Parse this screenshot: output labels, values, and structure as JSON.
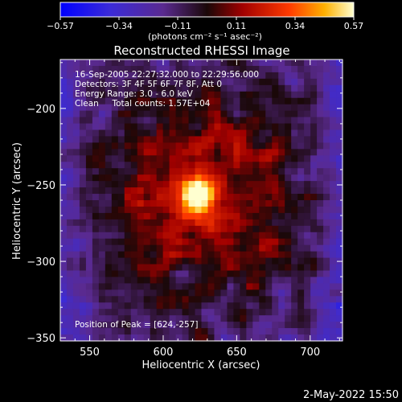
{
  "title": "Reconstructed RHESSI Image",
  "colorbar": {
    "unit_label": "(photons cm⁻² s⁻¹ asec⁻²)",
    "ticks": [
      "−0.57",
      "−0.34",
      "−0.11",
      "0.11",
      "0.34",
      "0.57"
    ],
    "range": [
      -0.57,
      0.57
    ]
  },
  "annotations": [
    "16-Sep-2005 22:27:32.000 to 22:29:56.000",
    "Detectors: 3F 4F 5F 6F 7F 8F, Att 0",
    "Energy Range: 3.0 - 6.0 keV",
    "Clean     Total counts: 1.57E+04"
  ],
  "peak_label": "Position of Peak = [624,-257]",
  "footer_date": "2-May-2022 15:50",
  "chart_data": {
    "type": "heatmap",
    "title": "Reconstructed RHESSI Image",
    "xlabel": "Heliocentric X (arcsec)",
    "ylabel": "Heliocentric Y (arcsec)",
    "xlim": [
      530,
      722
    ],
    "ylim": [
      -352,
      -168
    ],
    "xticks": [
      550,
      600,
      650,
      700
    ],
    "yticks": [
      -200,
      -250,
      -300,
      -350
    ],
    "xtick_labels": [
      "550",
      "600",
      "650",
      "700"
    ],
    "ytick_labels": [
      "−200",
      "−250",
      "−300",
      "−350"
    ],
    "peak": {
      "x": 624,
      "y": -257,
      "value": 0.57
    },
    "zrange": [
      -0.57,
      0.57
    ]
  }
}
